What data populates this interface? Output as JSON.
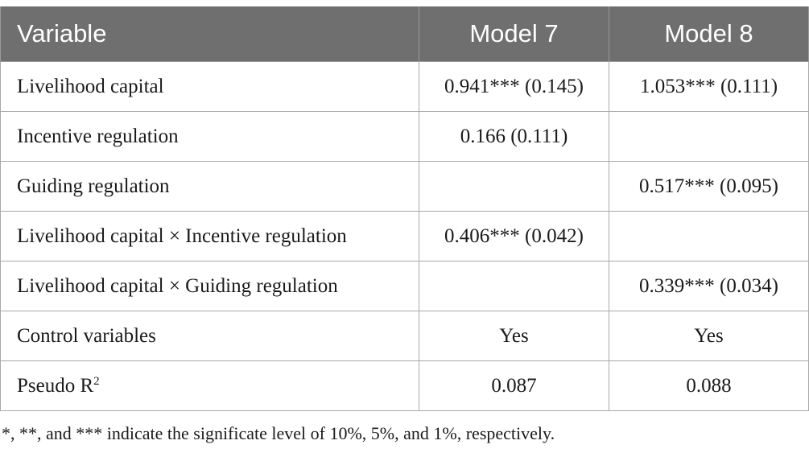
{
  "table": {
    "headers": [
      "Variable",
      "Model 7",
      "Model 8"
    ],
    "rows": [
      {
        "variable": "Livelihood capital",
        "model7": "0.941*** (0.145)",
        "model8": "1.053*** (0.111)"
      },
      {
        "variable": "Incentive regulation",
        "model7": "0.166 (0.111)",
        "model8": ""
      },
      {
        "variable": "Guiding regulation",
        "model7": "",
        "model8": "0.517*** (0.095)"
      },
      {
        "variable": "Livelihood capital × Incentive regulation",
        "model7": "0.406*** (0.042)",
        "model8": ""
      },
      {
        "variable": "Livelihood capital × Guiding regulation",
        "model7": "",
        "model8": "0.339*** (0.034)"
      },
      {
        "variable": "Control variables",
        "model7": "Yes",
        "model8": "Yes"
      },
      {
        "variable": "Pseudo R",
        "variable_sup": "2",
        "model7": "0.087",
        "model8": "0.088"
      }
    ]
  },
  "footnote": "*, **, and *** indicate the significate level of 10%, 5%, and 1%, respectively."
}
